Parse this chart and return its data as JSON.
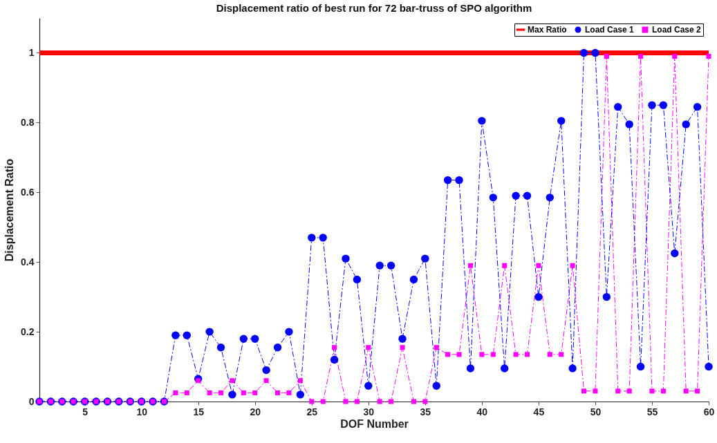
{
  "chart_data": {
    "type": "line",
    "title": "Displacement ratio of best run for 72 bar-truss of SPO algorithm",
    "xlabel": "DOF Number",
    "ylabel": "Displacement Ratio",
    "x": [
      1,
      2,
      3,
      4,
      5,
      6,
      7,
      8,
      9,
      10,
      11,
      12,
      13,
      14,
      15,
      16,
      17,
      18,
      19,
      20,
      21,
      22,
      23,
      24,
      25,
      26,
      27,
      28,
      29,
      30,
      31,
      32,
      33,
      34,
      35,
      36,
      37,
      38,
      39,
      40,
      41,
      42,
      43,
      44,
      45,
      46,
      47,
      48,
      49,
      50,
      51,
      52,
      53,
      54,
      55,
      56,
      57,
      58,
      59,
      60
    ],
    "series": [
      {
        "name": "Max Ratio",
        "color": "#ff0000",
        "x": [
          1,
          60
        ],
        "values": [
          1,
          1
        ],
        "marker": "none",
        "line_style": "solid"
      },
      {
        "name": "Load Case 1",
        "color": "#0000ff",
        "marker": "circle",
        "line_style": "dashed",
        "values": [
          0,
          0,
          0,
          0,
          0,
          0,
          0,
          0,
          0,
          0,
          0,
          0,
          0.19,
          0.19,
          0.065,
          0.2,
          0.155,
          0.02,
          0.18,
          0.18,
          0.09,
          0.155,
          0.2,
          0.02,
          0.47,
          0.47,
          0.12,
          0.41,
          0.35,
          0.045,
          0.39,
          0.39,
          0.18,
          0.35,
          0.41,
          0.045,
          0.635,
          0.635,
          0.095,
          0.805,
          0.585,
          0.095,
          0.59,
          0.59,
          0.3,
          0.585,
          0.805,
          0.095,
          1,
          1,
          0.3,
          0.845,
          0.795,
          0.1,
          0.85,
          0.85,
          0.425,
          0.795,
          0.845,
          0.1
        ]
      },
      {
        "name": "Load Case 2",
        "color": "#ff00ff",
        "marker": "square",
        "line_style": "dashed",
        "values": [
          0,
          0,
          0,
          0,
          0,
          0,
          0,
          0,
          0,
          0,
          0,
          0,
          0.025,
          0.025,
          0.06,
          0.025,
          0.025,
          0.06,
          0.025,
          0.025,
          0.06,
          0.025,
          0.025,
          0.06,
          0,
          0,
          0.155,
          0,
          0,
          0.155,
          0,
          0,
          0.155,
          0,
          0,
          0.155,
          0.135,
          0.135,
          0.39,
          0.135,
          0.135,
          0.39,
          0.135,
          0.135,
          0.39,
          0.135,
          0.135,
          0.39,
          0.03,
          0.03,
          0.99,
          0.03,
          0.03,
          0.99,
          0.03,
          0.03,
          0.99,
          0.03,
          0.03,
          0.99
        ]
      }
    ],
    "xlim": [
      1,
      60
    ],
    "xticks": [
      5,
      10,
      15,
      20,
      25,
      30,
      35,
      40,
      45,
      50,
      55,
      60
    ],
    "ylim": [
      0,
      1.1
    ],
    "yticks": [
      0,
      0.2,
      0.4,
      0.6,
      0.8,
      1
    ],
    "grid": false,
    "legend": "top right"
  }
}
